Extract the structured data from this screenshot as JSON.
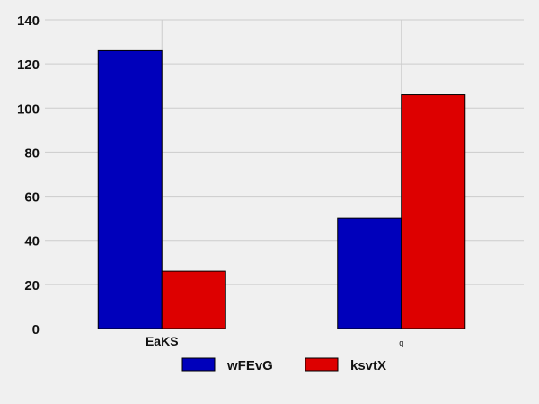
{
  "chart_data": {
    "type": "bar",
    "categories": [
      "EaKS",
      "q"
    ],
    "series": [
      {
        "name": "wFEvG",
        "values": [
          126,
          50
        ],
        "color": "#0000bb"
      },
      {
        "name": "ksvtX",
        "values": [
          26,
          106
        ],
        "color": "#dd0000"
      }
    ],
    "title": "",
    "xlabel": "",
    "ylabel": "",
    "ylim": [
      0,
      140
    ],
    "yticks": [
      0,
      20,
      40,
      60,
      80,
      100,
      120,
      140
    ],
    "grid": true,
    "legend_position": "bottom-center",
    "background": "#f0f0f0",
    "grid_color": "#cccccc"
  }
}
